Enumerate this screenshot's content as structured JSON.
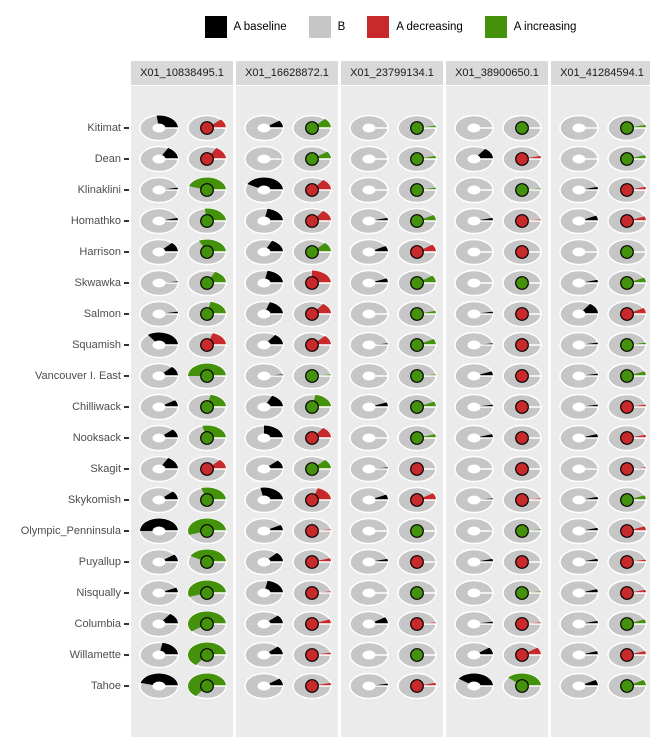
{
  "chart_data": {
    "type": "pie",
    "title": "",
    "description": "Faceted grid of paired pie glyphs per river system and marker. Left donut: black wedge = A baseline proportion, rest gray = B. Right pie: colored wedge and center dot = A decreasing (red) or A increasing (green) proportion, rest gray = B. Wedges end at the 3 o'clock position.",
    "legend": [
      {
        "label": "A baseline",
        "color": "#000000"
      },
      {
        "label": "B",
        "color": "#C6C6C6"
      },
      {
        "label": "A decreasing",
        "color": "#C8292B"
      },
      {
        "label": "A increasing",
        "color": "#44910C"
      }
    ],
    "facet_columns": [
      "X01_10838495.1",
      "X01_16628872.1",
      "X01_23799134.1",
      "X01_38900650.1",
      "X01_41284594.1"
    ],
    "colors": {
      "baseline": "#000000",
      "b": "#C6C6C6",
      "decreasing": "#C8292B",
      "increasing": "#44910C",
      "panel": "#EBEBEB",
      "strip": "#D9D9D9",
      "seam": "#FFFFFF"
    },
    "rows": [
      {
        "name": "Kitimat",
        "cells": [
          {
            "a_baseline": 0.27,
            "trend": "decreasing",
            "a_trend": 0.12
          },
          {
            "a_baseline": 0.1,
            "trend": "increasing",
            "a_trend": 0.13
          },
          {
            "a_baseline": 0.0,
            "trend": "increasing",
            "a_trend": 0.03
          },
          {
            "a_baseline": 0.0,
            "trend": "increasing",
            "a_trend": 0.0
          },
          {
            "a_baseline": 0.0,
            "trend": "increasing",
            "a_trend": 0.04
          }
        ]
      },
      {
        "name": "Dean",
        "cells": [
          {
            "a_baseline": 0.17,
            "trend": "decreasing",
            "a_trend": 0.17
          },
          {
            "a_baseline": 0.01,
            "trend": "increasing",
            "a_trend": 0.1
          },
          {
            "a_baseline": 0.0,
            "trend": "increasing",
            "a_trend": 0.04
          },
          {
            "a_baseline": 0.15,
            "trend": "decreasing",
            "a_trend": 0.04
          },
          {
            "a_baseline": 0.0,
            "trend": "increasing",
            "a_trend": 0.05
          }
        ]
      },
      {
        "name": "Klinaklini",
        "cells": [
          {
            "a_baseline": 0.03,
            "trend": "increasing",
            "a_trend": 0.45
          },
          {
            "a_baseline": 0.42,
            "trend": "decreasing",
            "a_trend": 0.15
          },
          {
            "a_baseline": 0.0,
            "trend": "increasing",
            "a_trend": 0.03
          },
          {
            "a_baseline": 0.0,
            "trend": "increasing",
            "a_trend": 0.02
          },
          {
            "a_baseline": 0.04,
            "trend": "decreasing",
            "a_trend": 0.04
          }
        ]
      },
      {
        "name": "Homathko",
        "cells": [
          {
            "a_baseline": 0.04,
            "trend": "increasing",
            "a_trend": 0.27
          },
          {
            "a_baseline": 0.22,
            "trend": "decreasing",
            "a_trend": 0.15
          },
          {
            "a_baseline": 0.04,
            "trend": "increasing",
            "a_trend": 0.08
          },
          {
            "a_baseline": 0.04,
            "trend": "decreasing",
            "a_trend": 0.02
          },
          {
            "a_baseline": 0.07,
            "trend": "decreasing",
            "a_trend": 0.06
          }
        ]
      },
      {
        "name": "Harrison",
        "cells": [
          {
            "a_baseline": 0.13,
            "trend": "increasing",
            "a_trend": 0.32
          },
          {
            "a_baseline": 0.18,
            "trend": "increasing",
            "a_trend": 0.13
          },
          {
            "a_baseline": 0.08,
            "trend": "decreasing",
            "a_trend": 0.1
          },
          {
            "a_baseline": 0.0,
            "trend": "decreasing",
            "a_trend": 0.0
          },
          {
            "a_baseline": 0.0,
            "trend": "increasing",
            "a_trend": 0.01
          }
        ]
      },
      {
        "name": "Skwawka",
        "cells": [
          {
            "a_baseline": 0.02,
            "trend": "increasing",
            "a_trend": 0.18
          },
          {
            "a_baseline": 0.22,
            "trend": "decreasing",
            "a_trend": 0.25
          },
          {
            "a_baseline": 0.06,
            "trend": "increasing",
            "a_trend": 0.1
          },
          {
            "a_baseline": 0.0,
            "trend": "increasing",
            "a_trend": 0.0
          },
          {
            "a_baseline": 0.04,
            "trend": "increasing",
            "a_trend": 0.07
          }
        ]
      },
      {
        "name": "Salmon",
        "cells": [
          {
            "a_baseline": 0.03,
            "trend": "increasing",
            "a_trend": 0.22
          },
          {
            "a_baseline": 0.2,
            "trend": "decreasing",
            "a_trend": 0.15
          },
          {
            "a_baseline": 0.0,
            "trend": "increasing",
            "a_trend": 0.04
          },
          {
            "a_baseline": 0.03,
            "trend": "decreasing",
            "a_trend": 0.0
          },
          {
            "a_baseline": 0.15,
            "trend": "decreasing",
            "a_trend": 0.08
          }
        ]
      },
      {
        "name": "Squamish",
        "cells": [
          {
            "a_baseline": 0.35,
            "trend": "decreasing",
            "a_trend": 0.2
          },
          {
            "a_baseline": 0.15,
            "trend": "decreasing",
            "a_trend": 0.13
          },
          {
            "a_baseline": 0.02,
            "trend": "increasing",
            "a_trend": 0.08
          },
          {
            "a_baseline": 0.02,
            "trend": "decreasing",
            "a_trend": 0.0
          },
          {
            "a_baseline": 0.03,
            "trend": "increasing",
            "a_trend": 0.03
          }
        ]
      },
      {
        "name": "Vancouver I. East",
        "cells": [
          {
            "a_baseline": 0.13,
            "trend": "increasing",
            "a_trend": 0.5
          },
          {
            "a_baseline": 0.02,
            "trend": "increasing",
            "a_trend": 0.02
          },
          {
            "a_baseline": 0.0,
            "trend": "increasing",
            "a_trend": 0.02
          },
          {
            "a_baseline": 0.06,
            "trend": "decreasing",
            "a_trend": 0.0
          },
          {
            "a_baseline": 0.03,
            "trend": "increasing",
            "a_trend": 0.06
          }
        ]
      },
      {
        "name": "Chilliwack",
        "cells": [
          {
            "a_baseline": 0.09,
            "trend": "increasing",
            "a_trend": 0.22
          },
          {
            "a_baseline": 0.18,
            "trend": "increasing",
            "a_trend": 0.22
          },
          {
            "a_baseline": 0.06,
            "trend": "increasing",
            "a_trend": 0.07
          },
          {
            "a_baseline": 0.03,
            "trend": "decreasing",
            "a_trend": 0.0
          },
          {
            "a_baseline": 0.03,
            "trend": "decreasing",
            "a_trend": 0.03
          }
        ]
      },
      {
        "name": "Nooksack",
        "cells": [
          {
            "a_baseline": 0.12,
            "trend": "increasing",
            "a_trend": 0.29
          },
          {
            "a_baseline": 0.25,
            "trend": "decreasing",
            "a_trend": 0.15
          },
          {
            "a_baseline": 0.0,
            "trend": "increasing",
            "a_trend": 0.05
          },
          {
            "a_baseline": 0.05,
            "trend": "decreasing",
            "a_trend": 0.0
          },
          {
            "a_baseline": 0.05,
            "trend": "decreasing",
            "a_trend": 0.04
          }
        ]
      },
      {
        "name": "Skagit",
        "cells": [
          {
            "a_baseline": 0.17,
            "trend": "decreasing",
            "a_trend": 0.13
          },
          {
            "a_baseline": 0.12,
            "trend": "increasing",
            "a_trend": 0.13
          },
          {
            "a_baseline": 0.02,
            "trend": "decreasing",
            "a_trend": 0.01
          },
          {
            "a_baseline": 0.0,
            "trend": "decreasing",
            "a_trend": 0.0
          },
          {
            "a_baseline": 0.01,
            "trend": "decreasing",
            "a_trend": 0.02
          }
        ]
      },
      {
        "name": "Skykomish",
        "cells": [
          {
            "a_baseline": 0.12,
            "trend": "increasing",
            "a_trend": 0.3
          },
          {
            "a_baseline": 0.28,
            "trend": "decreasing",
            "a_trend": 0.2
          },
          {
            "a_baseline": 0.07,
            "trend": "decreasing",
            "a_trend": 0.09
          },
          {
            "a_baseline": 0.02,
            "trend": "decreasing",
            "a_trend": 0.02
          },
          {
            "a_baseline": 0.04,
            "trend": "increasing",
            "a_trend": 0.06
          }
        ]
      },
      {
        "name": "Olympic_Penninsula",
        "cells": [
          {
            "a_baseline": 0.5,
            "trend": "increasing",
            "a_trend": 0.55
          },
          {
            "a_baseline": 0.08,
            "trend": "decreasing",
            "a_trend": 0.02
          },
          {
            "a_baseline": 0.0,
            "trend": "increasing",
            "a_trend": 0.0
          },
          {
            "a_baseline": 0.01,
            "trend": "increasing",
            "a_trend": 0.02
          },
          {
            "a_baseline": 0.04,
            "trend": "decreasing",
            "a_trend": 0.06
          }
        ]
      },
      {
        "name": "Puyallup",
        "cells": [
          {
            "a_baseline": 0.1,
            "trend": "increasing",
            "a_trend": 0.42
          },
          {
            "a_baseline": 0.13,
            "trend": "decreasing",
            "a_trend": 0.05
          },
          {
            "a_baseline": 0.04,
            "trend": "decreasing",
            "a_trend": 0.01
          },
          {
            "a_baseline": 0.04,
            "trend": "decreasing",
            "a_trend": 0.0
          },
          {
            "a_baseline": 0.04,
            "trend": "decreasing",
            "a_trend": 0.03
          }
        ]
      },
      {
        "name": "Nisqually",
        "cells": [
          {
            "a_baseline": 0.07,
            "trend": "increasing",
            "a_trend": 0.55
          },
          {
            "a_baseline": 0.22,
            "trend": "decreasing",
            "a_trend": 0.02
          },
          {
            "a_baseline": 0.0,
            "trend": "increasing",
            "a_trend": 0.0
          },
          {
            "a_baseline": 0.0,
            "trend": "increasing",
            "a_trend": 0.02
          },
          {
            "a_baseline": 0.05,
            "trend": "decreasing",
            "a_trend": 0.04
          }
        ]
      },
      {
        "name": "Columbia",
        "cells": [
          {
            "a_baseline": 0.15,
            "trend": "increasing",
            "a_trend": 0.6
          },
          {
            "a_baseline": 0.12,
            "trend": "decreasing",
            "a_trend": 0.06
          },
          {
            "a_baseline": 0.09,
            "trend": "decreasing",
            "a_trend": 0.02
          },
          {
            "a_baseline": 0.03,
            "trend": "decreasing",
            "a_trend": 0.02
          },
          {
            "a_baseline": 0.04,
            "trend": "increasing",
            "a_trend": 0.06
          }
        ]
      },
      {
        "name": "Willamette",
        "cells": [
          {
            "a_baseline": 0.22,
            "trend": "increasing",
            "a_trend": 0.65
          },
          {
            "a_baseline": 0.12,
            "trend": "decreasing",
            "a_trend": 0.03
          },
          {
            "a_baseline": 0.0,
            "trend": "increasing",
            "a_trend": 0.0
          },
          {
            "a_baseline": 0.1,
            "trend": "decreasing",
            "a_trend": 0.1
          },
          {
            "a_baseline": 0.05,
            "trend": "decreasing",
            "a_trend": 0.05
          }
        ]
      },
      {
        "name": "Tahoe",
        "cells": [
          {
            "a_baseline": 0.46,
            "trend": "increasing",
            "a_trend": 0.65
          },
          {
            "a_baseline": 0.1,
            "trend": "decreasing",
            "a_trend": 0.04
          },
          {
            "a_baseline": 0.03,
            "trend": "decreasing",
            "a_trend": 0.04
          },
          {
            "a_baseline": 0.4,
            "trend": "increasing",
            "a_trend": 0.38
          },
          {
            "a_baseline": 0.08,
            "trend": "increasing",
            "a_trend": 0.08
          }
        ]
      }
    ]
  }
}
